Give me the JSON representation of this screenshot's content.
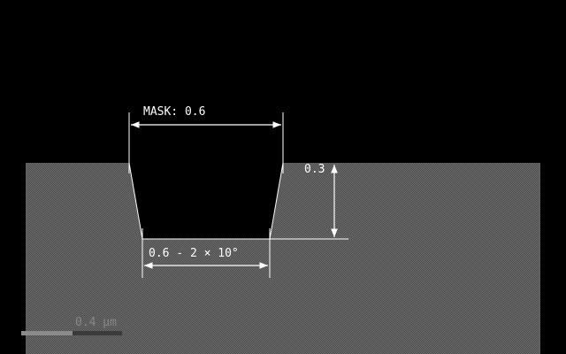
{
  "colors": {
    "background": "#000000",
    "substrate": "#5a5a5a",
    "line": "#ffffff",
    "scale_bar": "#8a8a8a"
  },
  "labels": {
    "mask": "MASK: 0.6",
    "depth": "0.3",
    "bottom_width": "0.6 - 2 × 10°",
    "scale": "0.4 µm"
  }
}
